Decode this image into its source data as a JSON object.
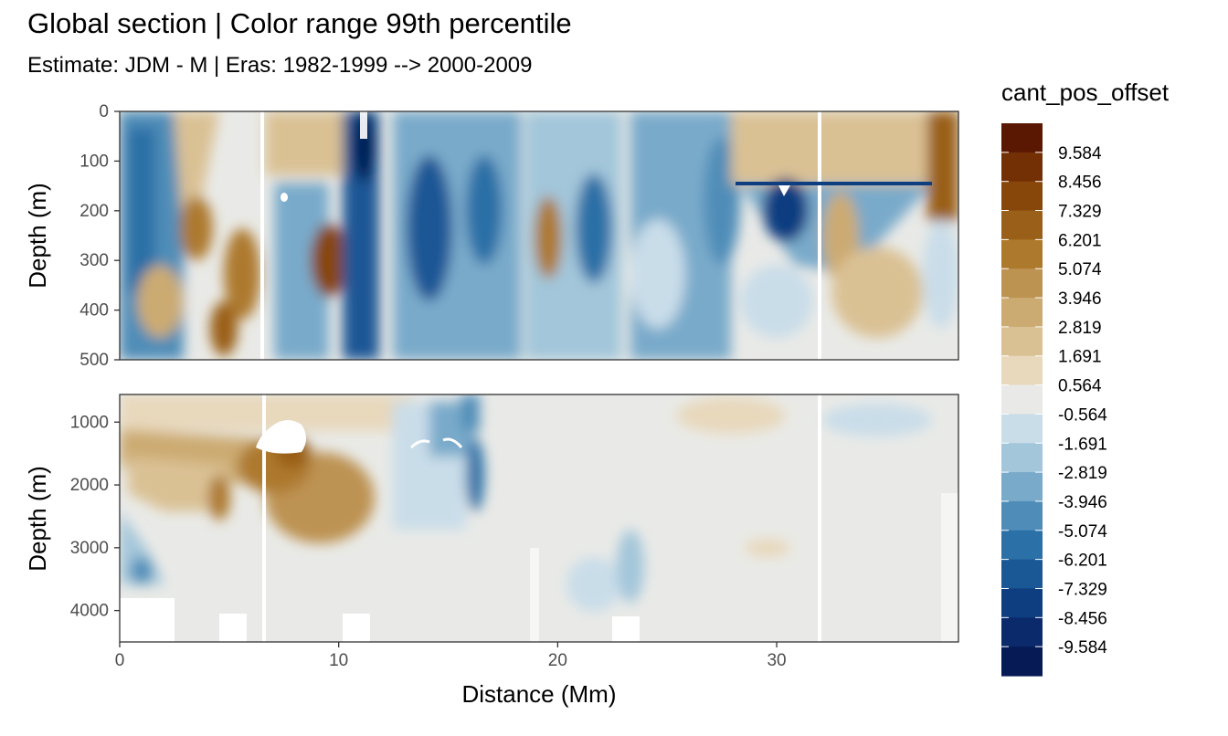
{
  "chart_data": {
    "type": "heatmap",
    "title": "Global section | Color range 99th percentile",
    "subtitle": "Estimate: JDM - M | Eras: 1982-1999 --> 2000-2009",
    "xlabel": "Distance (Mm)",
    "ylabel": "Depth (m)",
    "xlim": [
      0,
      38.3
    ],
    "x_ticks": [
      "0",
      "10",
      "20",
      "30"
    ],
    "x_tick_values": [
      0,
      10,
      20,
      30
    ],
    "panels": [
      {
        "ylim": [
          0,
          500
        ],
        "y_ticks": [
          "0",
          "100",
          "200",
          "300",
          "400",
          "500"
        ],
        "y_tick_values": [
          0,
          100,
          200,
          300,
          400,
          500
        ]
      },
      {
        "ylim": [
          560,
          4500
        ],
        "y_ticks": [
          "1000",
          "2000",
          "3000",
          "4000"
        ],
        "y_tick_values": [
          1000,
          2000,
          3000,
          4000
        ]
      }
    ],
    "legend": {
      "title": "cant_pos_offset",
      "position": "right",
      "labels": [
        "9.584",
        "8.456",
        "7.329",
        "6.201",
        "5.074",
        "3.946",
        "2.819",
        "1.691",
        "0.564",
        "-0.564",
        "-1.691",
        "-2.819",
        "-3.946",
        "-5.074",
        "-6.201",
        "-7.329",
        "-8.456",
        "-9.584"
      ],
      "colors": [
        "#5a1802",
        "#733005",
        "#87470b",
        "#9a5f18",
        "#ad792d",
        "#bd9352",
        "#ccab72",
        "#dac194",
        "#e8d8bc",
        "#e9eae7",
        "#c9dde9",
        "#a3c6da",
        "#79aaca",
        "#4f8db8",
        "#2b70a6",
        "#1a5795",
        "#0e3e80",
        "#0a2a6b",
        "#061b55"
      ]
    },
    "grid": false
  }
}
